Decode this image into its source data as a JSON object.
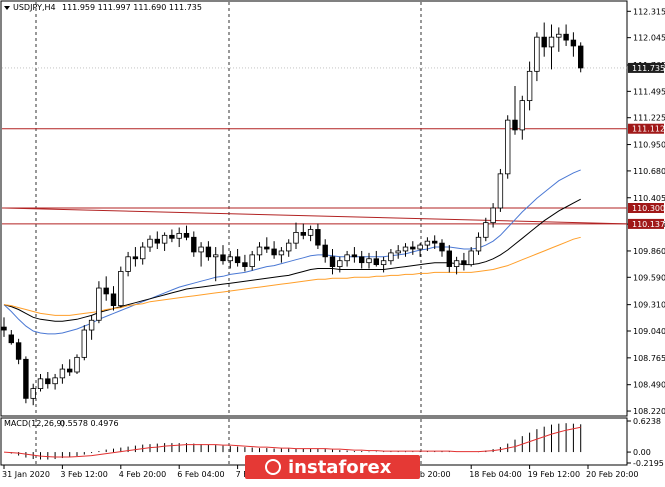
{
  "header": {
    "symbol_title": "USDJPY,H4",
    "ohlc": "111.959 111.997 111.690 111.735",
    "macd_title": "MACD(12,26,9)",
    "macd_values": "0.5578 0.4976"
  },
  "watermark": {
    "text": "instaforex"
  },
  "colors": {
    "background": "#ffffff",
    "candle_bull": "#ffffff",
    "candle_bear": "#000000",
    "ma_blue": "#4a78d4",
    "ma_black": "#000000",
    "ma_orange": "#ff9f2a",
    "level_red": "#b22222",
    "macd_signal": "#e23030",
    "badge_red": "#a01818",
    "badge_gray": "#1f1f1f"
  },
  "chart_data": {
    "type": "candlestick",
    "symbol": "USDJPY",
    "timeframe": "H4",
    "ylim": [
      108.2,
      112.4
    ],
    "y_ticks": [
      "112.315",
      "112.045",
      "111.765",
      "111.495",
      "111.225",
      "110.950",
      "110.680",
      "110.405",
      "110.135",
      "109.860",
      "109.590",
      "109.310",
      "109.040",
      "108.765",
      "108.490",
      "108.220"
    ],
    "x_tick_labels": [
      "31 Jan 2020",
      "3 Feb 12:00",
      "4 Feb 20:00",
      "6 Feb 04:00",
      "7 Feb 12:00",
      "",
      "",
      "Feb 20:00",
      "18 Feb 04:00",
      "19 Feb 12:00",
      "20 Feb 20:00"
    ],
    "x_tick_index": [
      0,
      8,
      16,
      24,
      32,
      40,
      48,
      56,
      64,
      72,
      80
    ],
    "candles": [
      [
        109.08,
        109.18,
        108.98,
        109.05
      ],
      [
        109.0,
        109.05,
        108.9,
        108.92
      ],
      [
        108.92,
        108.96,
        108.7,
        108.75
      ],
      [
        108.75,
        108.78,
        108.3,
        108.35
      ],
      [
        108.35,
        108.5,
        108.28,
        108.45
      ],
      [
        108.45,
        108.6,
        108.42,
        108.55
      ],
      [
        108.55,
        108.62,
        108.45,
        108.5
      ],
      [
        108.5,
        108.6,
        108.44,
        108.56
      ],
      [
        108.56,
        108.7,
        108.5,
        108.65
      ],
      [
        108.65,
        108.75,
        108.58,
        108.62
      ],
      [
        108.62,
        108.8,
        108.6,
        108.77
      ],
      [
        108.77,
        109.1,
        108.74,
        109.05
      ],
      [
        109.05,
        109.2,
        108.95,
        109.15
      ],
      [
        109.15,
        109.55,
        109.12,
        109.48
      ],
      [
        109.48,
        109.6,
        109.35,
        109.42
      ],
      [
        109.42,
        109.5,
        109.25,
        109.3
      ],
      [
        109.3,
        109.7,
        109.28,
        109.65
      ],
      [
        109.65,
        109.85,
        109.6,
        109.8
      ],
      [
        109.8,
        109.9,
        109.7,
        109.78
      ],
      [
        109.78,
        109.95,
        109.72,
        109.9
      ],
      [
        109.9,
        110.02,
        109.85,
        109.98
      ],
      [
        109.98,
        110.06,
        109.88,
        109.94
      ],
      [
        109.94,
        110.05,
        109.86,
        110.02
      ],
      [
        110.02,
        110.08,
        109.95,
        109.99
      ],
      [
        109.99,
        110.1,
        109.9,
        110.04
      ],
      [
        110.04,
        110.12,
        109.97,
        110.0
      ],
      [
        110.0,
        110.06,
        109.8,
        109.85
      ],
      [
        109.85,
        109.95,
        109.7,
        109.9
      ],
      [
        109.9,
        109.96,
        109.76,
        109.8
      ],
      [
        109.8,
        109.9,
        109.55,
        109.82
      ],
      [
        109.82,
        109.92,
        109.72,
        109.76
      ],
      [
        109.76,
        109.86,
        109.68,
        109.8
      ],
      [
        109.8,
        109.88,
        109.7,
        109.74
      ],
      [
        109.74,
        109.82,
        109.65,
        109.7
      ],
      [
        109.7,
        109.86,
        109.66,
        109.82
      ],
      [
        109.82,
        109.95,
        109.76,
        109.9
      ],
      [
        109.9,
        110.0,
        109.84,
        109.88
      ],
      [
        109.88,
        109.96,
        109.78,
        109.82
      ],
      [
        109.82,
        109.9,
        109.74,
        109.86
      ],
      [
        109.86,
        109.98,
        109.8,
        109.94
      ],
      [
        109.94,
        110.15,
        109.88,
        110.05
      ],
      [
        110.05,
        110.14,
        109.98,
        110.02
      ],
      [
        110.02,
        110.12,
        109.96,
        110.08
      ],
      [
        110.08,
        110.14,
        109.88,
        109.92
      ],
      [
        109.92,
        109.98,
        109.74,
        109.8
      ],
      [
        109.8,
        109.88,
        109.62,
        109.7
      ],
      [
        109.7,
        109.8,
        109.64,
        109.76
      ],
      [
        109.76,
        109.86,
        109.7,
        109.82
      ],
      [
        109.82,
        109.9,
        109.74,
        109.8
      ],
      [
        109.8,
        109.86,
        109.68,
        109.74
      ],
      [
        109.74,
        109.84,
        109.68,
        109.78
      ],
      [
        109.78,
        109.86,
        109.7,
        109.72
      ],
      [
        109.72,
        109.8,
        109.64,
        109.76
      ],
      [
        109.76,
        109.88,
        109.72,
        109.84
      ],
      [
        109.84,
        109.92,
        109.78,
        109.86
      ],
      [
        109.86,
        109.94,
        109.8,
        109.9
      ],
      [
        109.9,
        109.96,
        109.82,
        109.88
      ],
      [
        109.88,
        109.94,
        109.8,
        109.92
      ],
      [
        109.92,
        110.0,
        109.86,
        109.96
      ],
      [
        109.96,
        110.02,
        109.88,
        109.94
      ],
      [
        109.94,
        109.98,
        109.8,
        109.86
      ],
      [
        109.86,
        109.92,
        109.64,
        109.7
      ],
      [
        109.7,
        109.8,
        109.62,
        109.76
      ],
      [
        109.76,
        109.84,
        109.66,
        109.72
      ],
      [
        109.72,
        109.9,
        109.7,
        109.86
      ],
      [
        109.86,
        110.05,
        109.82,
        110.0
      ],
      [
        110.0,
        110.2,
        109.96,
        110.15
      ],
      [
        110.15,
        110.35,
        110.1,
        110.3
      ],
      [
        110.3,
        110.7,
        110.26,
        110.65
      ],
      [
        110.65,
        111.25,
        110.6,
        111.2
      ],
      [
        111.2,
        111.55,
        111.05,
        111.1
      ],
      [
        111.1,
        111.45,
        111.0,
        111.4
      ],
      [
        111.4,
        111.8,
        111.3,
        111.7
      ],
      [
        111.7,
        112.1,
        111.6,
        112.05
      ],
      [
        112.05,
        112.2,
        111.85,
        111.95
      ],
      [
        111.95,
        112.18,
        111.72,
        112.05
      ],
      [
        112.05,
        112.15,
        111.9,
        112.08
      ],
      [
        112.08,
        112.18,
        111.96,
        112.02
      ],
      [
        112.02,
        112.1,
        111.85,
        111.96
      ],
      [
        111.959,
        111.997,
        111.69,
        111.735
      ]
    ],
    "levels": [
      {
        "price": 111.112,
        "label": "111.112",
        "color": "#b22222",
        "badge": "#a01818"
      },
      {
        "price": 110.3,
        "label": "110.300",
        "color": "#b22222",
        "badge": "#a01818"
      },
      {
        "price": 110.137,
        "label": "110.137",
        "color": "#b22222",
        "badge": "#a01818"
      }
    ],
    "last_price": {
      "price": 111.735,
      "label": "111.735",
      "badge": "#1f1f1f"
    },
    "trendline": {
      "from": {
        "index": 0,
        "price": 110.3
      },
      "to": {
        "index": 80,
        "price": 110.137
      }
    },
    "moving_averages": [
      {
        "color": "#4a78d4",
        "values": [
          109.31,
          109.24,
          109.16,
          109.09,
          109.04,
          109.02,
          109.01,
          109.01,
          109.02,
          109.04,
          109.06,
          109.09,
          109.12,
          109.16,
          109.19,
          109.22,
          109.25,
          109.28,
          109.31,
          109.34,
          109.37,
          109.4,
          109.43,
          109.46,
          109.49,
          109.51,
          109.53,
          109.55,
          109.57,
          109.59,
          109.6,
          109.62,
          109.63,
          109.64,
          109.66,
          109.68,
          109.7,
          109.71,
          109.73,
          109.75,
          109.77,
          109.79,
          109.81,
          109.82,
          109.82,
          109.81,
          109.8,
          109.8,
          109.8,
          109.8,
          109.8,
          109.8,
          109.8,
          109.81,
          109.82,
          109.83,
          109.85,
          109.87,
          109.88,
          109.9,
          109.9,
          109.9,
          109.89,
          109.88,
          109.88,
          109.89,
          109.92,
          109.96,
          110.02,
          110.1,
          110.18,
          110.26,
          110.33,
          110.4,
          110.46,
          110.52,
          110.58,
          110.62,
          110.66,
          110.69
        ]
      },
      {
        "color": "#000000",
        "values": [
          109.31,
          109.29,
          109.26,
          109.22,
          109.18,
          109.16,
          109.15,
          109.14,
          109.14,
          109.15,
          109.16,
          109.18,
          109.2,
          109.23,
          109.25,
          109.27,
          109.29,
          109.31,
          109.33,
          109.35,
          109.37,
          109.39,
          109.41,
          109.43,
          109.45,
          109.47,
          109.48,
          109.49,
          109.5,
          109.51,
          109.52,
          109.53,
          109.54,
          109.55,
          109.56,
          109.57,
          109.58,
          109.59,
          109.6,
          109.61,
          109.63,
          109.65,
          109.67,
          109.68,
          109.68,
          109.68,
          109.67,
          109.67,
          109.67,
          109.67,
          109.67,
          109.67,
          109.67,
          109.68,
          109.69,
          109.7,
          109.71,
          109.72,
          109.73,
          109.74,
          109.74,
          109.74,
          109.73,
          109.72,
          109.72,
          109.73,
          109.75,
          109.78,
          109.82,
          109.87,
          109.93,
          109.99,
          110.05,
          110.11,
          110.17,
          110.22,
          110.27,
          110.31,
          110.35,
          110.39
        ]
      },
      {
        "color": "#ff9f2a",
        "values": [
          109.31,
          109.3,
          109.28,
          109.26,
          109.24,
          109.22,
          109.21,
          109.2,
          109.2,
          109.2,
          109.21,
          109.22,
          109.23,
          109.24,
          109.26,
          109.27,
          109.28,
          109.3,
          109.31,
          109.32,
          109.34,
          109.35,
          109.36,
          109.37,
          109.38,
          109.39,
          109.4,
          109.41,
          109.42,
          109.43,
          109.44,
          109.45,
          109.46,
          109.47,
          109.48,
          109.49,
          109.5,
          109.51,
          109.52,
          109.53,
          109.54,
          109.55,
          109.56,
          109.57,
          109.57,
          109.58,
          109.58,
          109.58,
          109.59,
          109.59,
          109.59,
          109.6,
          109.6,
          109.61,
          109.61,
          109.62,
          109.62,
          109.63,
          109.63,
          109.64,
          109.64,
          109.64,
          109.64,
          109.64,
          109.64,
          109.65,
          109.66,
          109.67,
          109.69,
          109.71,
          109.74,
          109.77,
          109.8,
          109.83,
          109.86,
          109.89,
          109.92,
          109.95,
          109.98,
          110.0
        ]
      }
    ],
    "macd": {
      "title": "MACD(12,26,9)",
      "values_text": "0.5578 0.4976",
      "ylim": [
        -0.2195,
        0.6238
      ],
      "y_ticks": [
        "0.6238",
        "0.00",
        "-0.2195"
      ],
      "histogram": [
        0.0,
        -0.03,
        -0.07,
        -0.11,
        -0.14,
        -0.15,
        -0.15,
        -0.14,
        -0.12,
        -0.1,
        -0.08,
        -0.05,
        -0.02,
        0.02,
        0.05,
        0.07,
        0.09,
        0.11,
        0.13,
        0.15,
        0.16,
        0.17,
        0.18,
        0.18,
        0.18,
        0.18,
        0.17,
        0.16,
        0.15,
        0.14,
        0.13,
        0.12,
        0.11,
        0.1,
        0.09,
        0.08,
        0.08,
        0.07,
        0.07,
        0.07,
        0.07,
        0.07,
        0.07,
        0.07,
        0.06,
        0.05,
        0.04,
        0.03,
        0.02,
        0.02,
        0.01,
        0.01,
        0.01,
        0.01,
        0.01,
        0.01,
        0.01,
        0.01,
        0.02,
        0.02,
        0.02,
        0.01,
        0.0,
        0.0,
        0.0,
        0.01,
        0.03,
        0.06,
        0.1,
        0.17,
        0.25,
        0.32,
        0.39,
        0.46,
        0.51,
        0.55,
        0.57,
        0.58,
        0.57,
        0.5578
      ],
      "signal": [
        0.0,
        -0.01,
        -0.02,
        -0.04,
        -0.06,
        -0.08,
        -0.09,
        -0.1,
        -0.1,
        -0.1,
        -0.09,
        -0.08,
        -0.07,
        -0.05,
        -0.03,
        -0.01,
        0.01,
        0.03,
        0.05,
        0.07,
        0.09,
        0.1,
        0.12,
        0.13,
        0.14,
        0.15,
        0.15,
        0.15,
        0.15,
        0.15,
        0.14,
        0.14,
        0.13,
        0.12,
        0.11,
        0.1,
        0.1,
        0.09,
        0.08,
        0.08,
        0.07,
        0.07,
        0.07,
        0.07,
        0.07,
        0.06,
        0.06,
        0.05,
        0.04,
        0.04,
        0.03,
        0.03,
        0.02,
        0.02,
        0.02,
        0.02,
        0.02,
        0.02,
        0.02,
        0.02,
        0.02,
        0.02,
        0.01,
        0.01,
        0.01,
        0.01,
        0.02,
        0.03,
        0.05,
        0.08,
        0.11,
        0.16,
        0.21,
        0.26,
        0.31,
        0.36,
        0.4,
        0.44,
        0.47,
        0.4976
      ]
    }
  }
}
